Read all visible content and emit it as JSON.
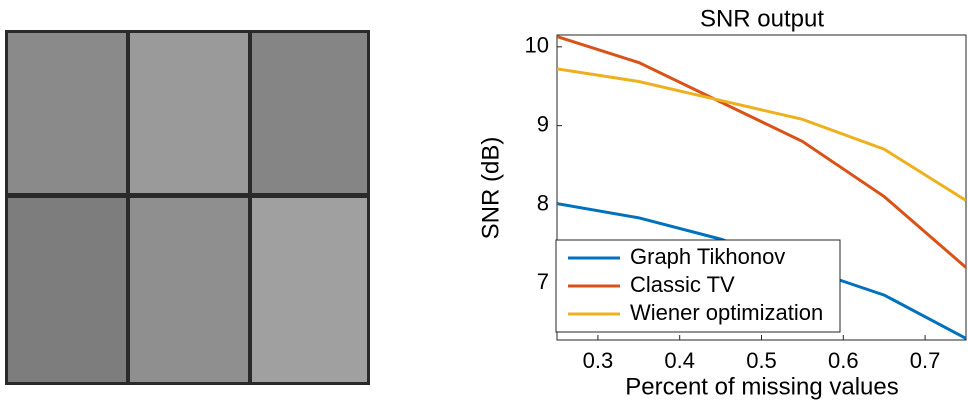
{
  "chart_data": {
    "type": "line",
    "title": "SNR output",
    "x_label": "Percent of missing values",
    "y_label": "SNR (dB)",
    "x": [
      0.25,
      0.35,
      0.45,
      0.55,
      0.65,
      0.75
    ],
    "xlim": [
      0.25,
      0.75
    ],
    "xticks": [
      0.3,
      0.4,
      0.5,
      0.6,
      0.7
    ],
    "ylim": [
      6.28,
      10.15
    ],
    "yticks": [
      7,
      8,
      9,
      10
    ],
    "legend": "lower-left",
    "series": [
      {
        "name": "Graph Tikhonov",
        "color": "#0072bd",
        "values": [
          8.01,
          7.83,
          7.56,
          7.2,
          6.85,
          6.3
        ]
      },
      {
        "name": "Classic TV",
        "color": "#d95319",
        "values": [
          10.13,
          9.8,
          9.3,
          8.8,
          8.1,
          7.2
        ]
      },
      {
        "name": "Wiener optimization",
        "color": "#edb120",
        "values": [
          9.72,
          9.56,
          9.32,
          9.08,
          8.7,
          8.05
        ]
      }
    ]
  }
}
